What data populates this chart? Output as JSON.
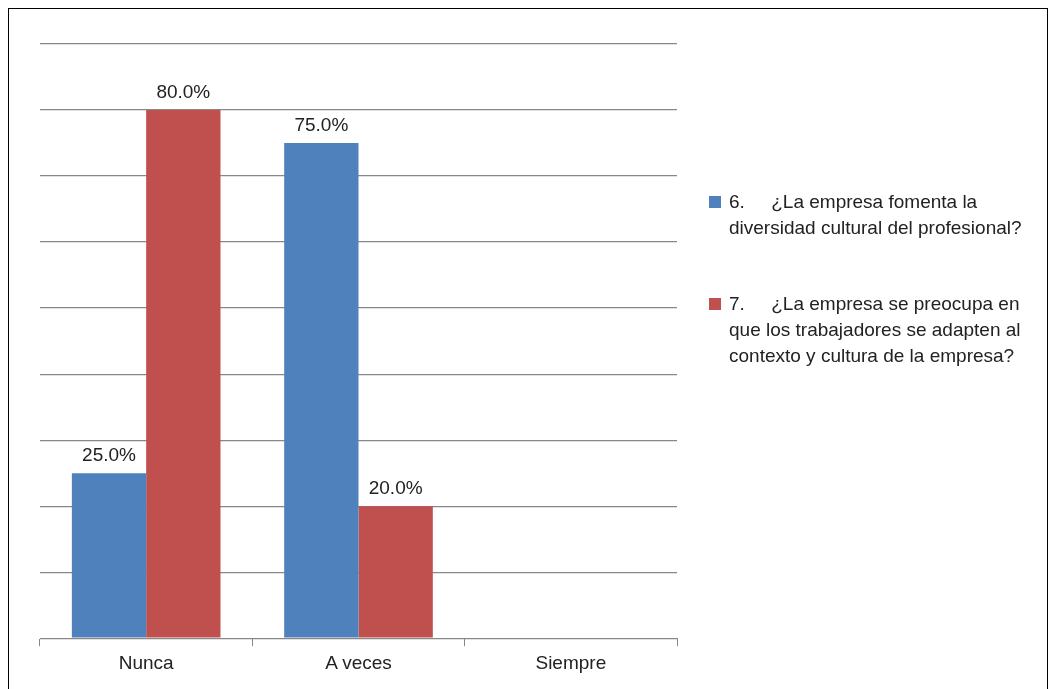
{
  "chart_data": {
    "type": "bar",
    "categories": [
      "Nunca",
      "A veces",
      "Siempre"
    ],
    "series": [
      {
        "name": "6.     ¿La empresa fomenta la diversidad cultural del profesional?",
        "color": "#4f81bd",
        "values": [
          25,
          75,
          null
        ],
        "value_labels": [
          "25.0%",
          "75.0%",
          null
        ]
      },
      {
        "name": "7.     ¿La empresa se preocupa en que los trabajadores se adapten al contexto y cultura de la empresa?",
        "color": "#c0504d",
        "values": [
          80,
          20,
          null
        ],
        "value_labels": [
          "80.0%",
          "20.0%",
          null
        ]
      }
    ],
    "ylim": [
      0,
      90
    ],
    "yticks": [
      {
        "value": 0,
        "label": null
      },
      {
        "value": 10,
        "label": null
      },
      {
        "value": 20,
        "label": null
      },
      {
        "value": 30,
        "label": null
      },
      {
        "value": 40,
        "label": null
      },
      {
        "value": 50,
        "label": null
      },
      {
        "value": 60,
        "label": null
      },
      {
        "value": 70,
        "label": null
      },
      {
        "value": 80,
        "label": null
      },
      {
        "value": 90,
        "label": null
      }
    ],
    "tick_labels": "x",
    "grid": "y",
    "legend": "right"
  }
}
